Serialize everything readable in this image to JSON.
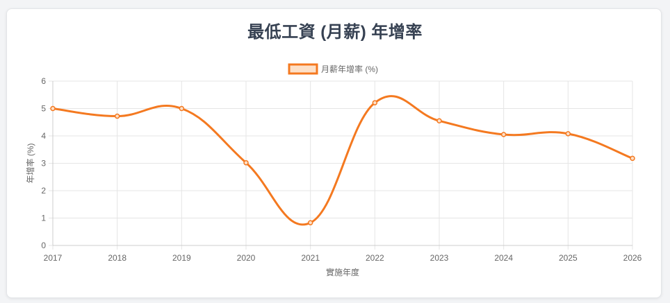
{
  "colors": {
    "line": "#f47920",
    "legend_fill": "#fde0c8",
    "grid": "#e5e5e5",
    "title": "#364152"
  },
  "chart_data": {
    "type": "line",
    "title": "最低工資 (月薪) 年增率",
    "xlabel": "實施年度",
    "ylabel": "年增率 (%)",
    "ylim": [
      0,
      6
    ],
    "yticks": [
      "0",
      "1",
      "2",
      "3",
      "4",
      "5",
      "6"
    ],
    "categories": [
      "2017",
      "2018",
      "2019",
      "2020",
      "2021",
      "2022",
      "2023",
      "2024",
      "2025",
      "2026"
    ],
    "series": [
      {
        "name": "月薪年增率 (%)",
        "values": [
          5.0,
          4.72,
          5.0,
          3.02,
          0.83,
          5.21,
          4.55,
          4.05,
          4.08,
          3.18
        ]
      }
    ],
    "legend_position": "top",
    "grid": true
  }
}
